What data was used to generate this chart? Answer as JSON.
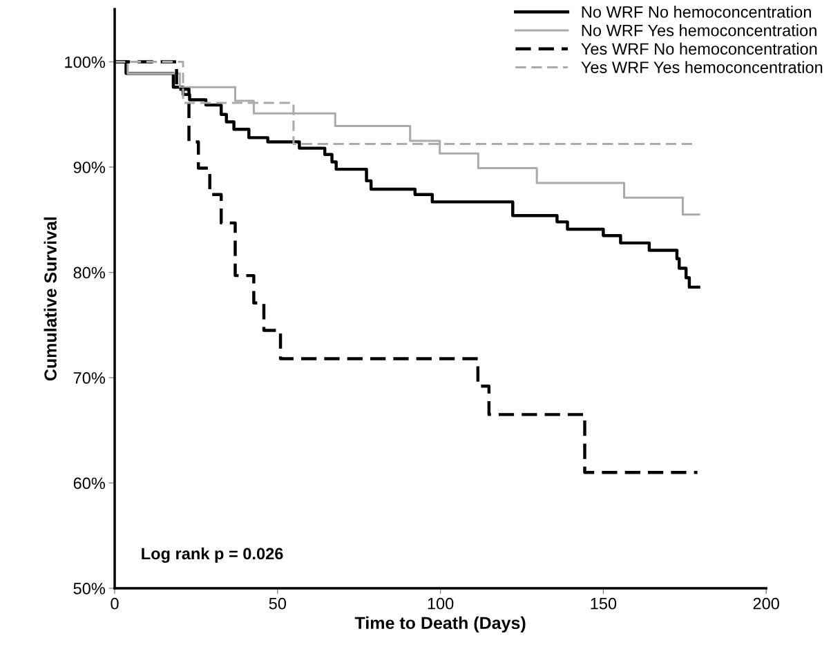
{
  "chart_data": {
    "type": "step",
    "xlabel": "Time to Death (Days)",
    "ylabel": "Cumulative Survival",
    "xlim": [
      0,
      200
    ],
    "xticks": [
      0,
      50,
      100,
      150,
      200
    ],
    "ylim": [
      50,
      105
    ],
    "yticks": [
      {
        "value": 50,
        "label": "50%"
      },
      {
        "value": 60,
        "label": "60%"
      },
      {
        "value": 70,
        "label": "70%"
      },
      {
        "value": 80,
        "label": "80%"
      },
      {
        "value": 90,
        "label": "90%"
      },
      {
        "value": 100,
        "label": "100%"
      }
    ],
    "grid": false,
    "legend": "top right",
    "marker": "none",
    "annotations": [
      "Log rank p = 0.026"
    ],
    "series": [
      {
        "name": "No WRF No hemoconcentration",
        "color": "#000000",
        "line_style": "solid",
        "x": [
          0,
          3.5,
          18,
          21,
          23,
          28,
          32.7,
          34.3,
          36.6,
          41.2,
          47,
          56.7,
          64.5,
          66.7,
          68,
          69.5,
          77.3,
          78.7,
          80,
          92.2,
          97.5,
          122.2,
          135.8,
          139,
          150,
          155.3,
          164.1,
          172.6,
          173.3,
          175.4,
          176.4,
          179.3
        ],
        "values": [
          100,
          98.9,
          97.6,
          96.9,
          96.4,
          95.9,
          95.0,
          94.3,
          93.6,
          92.8,
          92.4,
          91.8,
          91.2,
          90.5,
          89.8,
          89.8,
          88.7,
          87.9,
          87.9,
          87.4,
          86.7,
          85.4,
          84.8,
          84.1,
          83.5,
          82.8,
          82.1,
          81.3,
          80.4,
          79.5,
          78.6,
          78.6
        ]
      },
      {
        "name": "No WRF Yes hemoconcentration",
        "color": "#aaaaaa",
        "line_style": "solid",
        "x": [
          0,
          4,
          20,
          37,
          42.7,
          67.7,
          90.7,
          99.8,
          111.6,
          129.6,
          156.4,
          174.4,
          179.4
        ],
        "values": [
          100,
          98.9,
          97.6,
          96.3,
          95.1,
          93.9,
          92.5,
          91.3,
          89.9,
          88.5,
          87.1,
          85.5,
          85.5
        ]
      },
      {
        "name": "Yes WRF No hemoconcentration",
        "color": "#000000",
        "line_style": "dashed",
        "x": [
          0,
          19,
          22.8,
          25.7,
          29.2,
          32.7,
          37,
          42.7,
          45.8,
          50.9,
          111.5,
          114.9,
          144.3,
          178.9
        ],
        "values": [
          100,
          97.4,
          92.4,
          89.9,
          87.4,
          84.7,
          79.7,
          77.1,
          74.5,
          71.8,
          69.2,
          66.5,
          61.0,
          61.0
        ]
      },
      {
        "name": "Yes WRF Yes hemoconcentration",
        "color": "#aaaaaa",
        "line_style": "dashed",
        "x": [
          0,
          21,
          54.9,
          178.2
        ],
        "values": [
          100,
          96.1,
          92.2,
          92.2
        ]
      }
    ]
  }
}
